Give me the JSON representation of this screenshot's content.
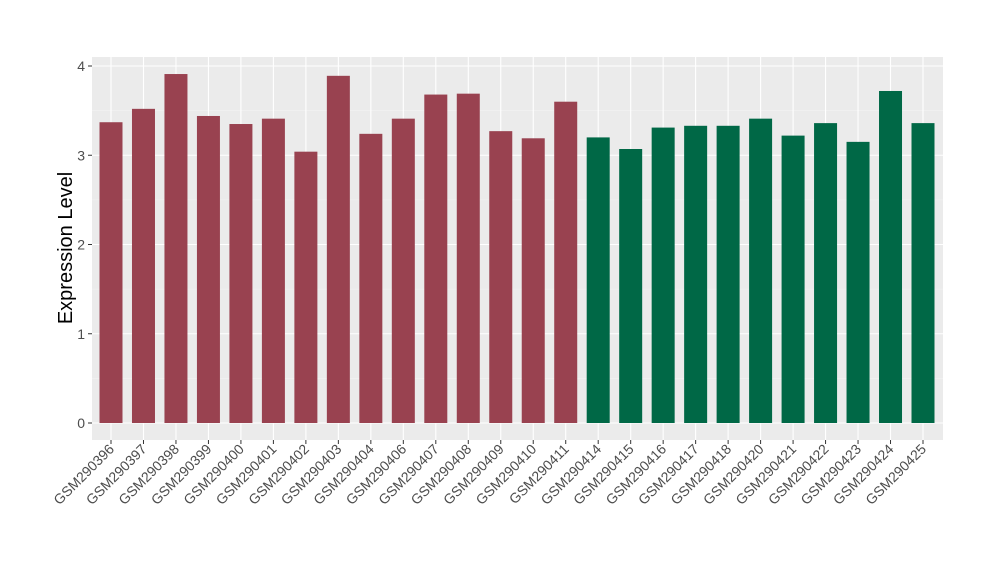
{
  "chart_data": {
    "type": "bar",
    "title": "",
    "xlabel": "",
    "ylabel": "Expression Level",
    "ylim": [
      -0.2,
      4.1
    ],
    "yticks": [
      0,
      1,
      2,
      3,
      4
    ],
    "grid": true,
    "categories": [
      "GSM290396",
      "GSM290397",
      "GSM290398",
      "GSM290399",
      "GSM290400",
      "GSM290401",
      "GSM290402",
      "GSM290403",
      "GSM290404",
      "GSM290406",
      "GSM290407",
      "GSM290408",
      "GSM290409",
      "GSM290410",
      "GSM290411",
      "GSM290414",
      "GSM290415",
      "GSM290416",
      "GSM290417",
      "GSM290418",
      "GSM290420",
      "GSM290421",
      "GSM290422",
      "GSM290423",
      "GSM290424",
      "GSM290425"
    ],
    "values": [
      3.37,
      3.52,
      3.91,
      3.44,
      3.35,
      3.41,
      3.04,
      3.89,
      3.24,
      3.41,
      3.68,
      3.69,
      3.27,
      3.19,
      3.6,
      3.2,
      3.07,
      3.31,
      3.33,
      3.33,
      3.41,
      3.22,
      3.36,
      3.15,
      3.72,
      3.36
    ],
    "groups": [
      0,
      0,
      0,
      0,
      0,
      0,
      0,
      0,
      0,
      0,
      0,
      0,
      0,
      0,
      0,
      1,
      1,
      1,
      1,
      1,
      1,
      1,
      1,
      1,
      1,
      1
    ],
    "group_colors": [
      "#994250",
      "#006846"
    ]
  }
}
